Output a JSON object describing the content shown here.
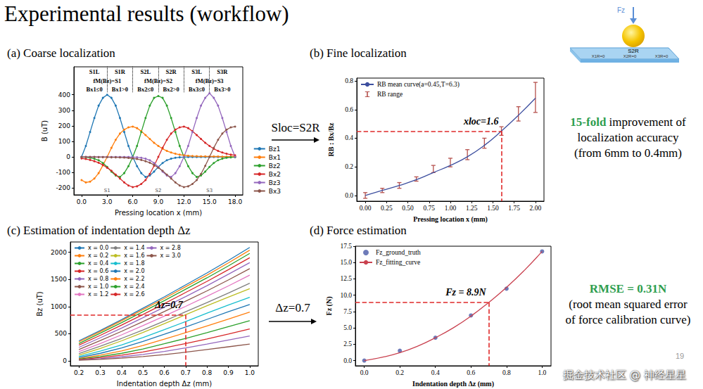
{
  "slide": {
    "title": "Experimental results (workflow)",
    "page": "19",
    "watermark": "掘金技术社区 @ 神经星星",
    "arrows": [
      {
        "label": "Sloc=S2R"
      },
      {
        "label": "Δz=0.7"
      }
    ],
    "notes": [
      {
        "highlight": "15-fold",
        "color": "#2e9e4f",
        "lines": [
          "improvement of",
          "localization accuracy",
          "(from 6mm to 0.4mm)"
        ]
      },
      {
        "highlight": "RMSE = 0.31N",
        "color": "#2e9e4f",
        "lines": [
          "(root mean squared error",
          "of force calibration curve)"
        ]
      }
    ],
    "diagram": {
      "force": "Fz",
      "region": "S2R",
      "labels": [
        "X1R=0",
        "X2R=0",
        "X3R=0"
      ]
    }
  },
  "chart_data": [
    {
      "type": "line",
      "title": "(a) Coarse localization",
      "x_label": "Pressing location x (mm)",
      "y_label": "B (uT)",
      "x": [
        0,
        0.5,
        1,
        1.5,
        2,
        2.5,
        3,
        3.5,
        4,
        4.5,
        5,
        5.5,
        6,
        6.5,
        7,
        7.5,
        8,
        8.5,
        9,
        9.5,
        10,
        10.5,
        11,
        11.5,
        12,
        12.5,
        13,
        13.5,
        14,
        14.5,
        15,
        15.5,
        16,
        16.5,
        17,
        17.5,
        18
      ],
      "series": [
        {
          "name": "Bz1",
          "color": "#1f77b4",
          "values": [
            0,
            70,
            160,
            250,
            330,
            380,
            400,
            380,
            330,
            250,
            160,
            70,
            0,
            -60,
            -105,
            -130,
            -120,
            -95,
            -65,
            -40,
            -22,
            -12,
            -6,
            -3,
            -2,
            -1,
            -1,
            -1,
            -1,
            -1,
            -1,
            -1,
            -1,
            -1,
            -1,
            -1,
            -1
          ]
        },
        {
          "name": "Bx1",
          "color": "#ff7f0e",
          "values": [
            -150,
            -165,
            -160,
            -140,
            -105,
            -55,
            0,
            58,
            110,
            150,
            175,
            190,
            195,
            185,
            165,
            140,
            115,
            90,
            70,
            52,
            38,
            28,
            20,
            14,
            10,
            7,
            5,
            4,
            3,
            3,
            2,
            2,
            2,
            1,
            1,
            1,
            1
          ]
        },
        {
          "name": "Bz2",
          "color": "#2ca02c",
          "values": [
            -2,
            -3,
            -6,
            -12,
            -22,
            -40,
            -65,
            -95,
            -120,
            -130,
            -105,
            -60,
            0,
            70,
            160,
            250,
            330,
            380,
            392,
            380,
            330,
            250,
            160,
            70,
            0,
            -60,
            -105,
            -130,
            -120,
            -95,
            -65,
            -40,
            -22,
            -12,
            -6,
            -3,
            -2
          ]
        },
        {
          "name": "Bx2",
          "color": "#d62728",
          "values": [
            -10,
            -14,
            -20,
            -28,
            -38,
            -52,
            -70,
            -90,
            -115,
            -140,
            -165,
            -185,
            -195,
            -190,
            -175,
            -150,
            -110,
            -58,
            0,
            58,
            110,
            150,
            175,
            190,
            195,
            185,
            165,
            140,
            115,
            90,
            70,
            52,
            38,
            28,
            20,
            14,
            10
          ]
        },
        {
          "name": "Bz3",
          "color": "#9467bd",
          "values": [
            -1,
            -1,
            -1,
            -1,
            -1,
            -1,
            -1,
            -1,
            -1,
            -1,
            -1,
            -1,
            -2,
            -3,
            -6,
            -12,
            -22,
            -40,
            -65,
            -95,
            -120,
            -130,
            -105,
            -60,
            0,
            70,
            160,
            250,
            330,
            380,
            410,
            380,
            330,
            250,
            160,
            70,
            0
          ]
        },
        {
          "name": "Bx3",
          "color": "#8c564b",
          "values": [
            -1,
            -1,
            -1,
            -1,
            -2,
            -2,
            -2,
            -3,
            -3,
            -4,
            -5,
            -7,
            -10,
            -14,
            -20,
            -28,
            -38,
            -52,
            -70,
            -90,
            -115,
            -140,
            -165,
            -185,
            -195,
            -190,
            -175,
            -150,
            -110,
            -58,
            0,
            58,
            110,
            150,
            175,
            190,
            195
          ]
        }
      ],
      "xlim": [
        -0.9,
        18.9
      ],
      "xticks": [
        {
          "value": 0,
          "label": "0.0"
        },
        {
          "value": 3,
          "label": "3.0"
        },
        {
          "value": 6,
          "label": "6.0"
        },
        {
          "value": 9,
          "label": "9.0"
        },
        {
          "value": 12,
          "label": "12.0"
        },
        {
          "value": 15,
          "label": "15.0"
        },
        {
          "value": 18,
          "label": "18.0"
        }
      ],
      "ylim": [
        -245,
        580
      ],
      "yticks": [
        -200,
        -100,
        0,
        100,
        200,
        300,
        400
      ],
      "marker": "circle",
      "legend": "lower right",
      "grid": false,
      "regions": [
        {
          "label": "S1L",
          "from": 0,
          "to": 3
        },
        {
          "label": "S1R",
          "from": 3,
          "to": 6
        },
        {
          "label": "S2L",
          "from": 6,
          "to": 9
        },
        {
          "label": "S2R",
          "from": 9,
          "to": 12
        },
        {
          "label": "S3L",
          "from": 12,
          "to": 15
        },
        {
          "label": "S3R",
          "from": 15,
          "to": 18
        }
      ],
      "groups": [
        {
          "label": "fM(Bz)=S1",
          "from": 0,
          "to": 6,
          "conditions": [
            "Bx1≤0",
            "Bx1>0"
          ]
        },
        {
          "label": "fM(Bz)=S2",
          "from": 6,
          "to": 12,
          "conditions": [
            "Bx2≤0",
            "Bx2>0"
          ]
        },
        {
          "label": "fM(Bz)=S3",
          "from": 12,
          "to": 18,
          "conditions": [
            "Bx3≤0",
            "Bx3>0"
          ]
        }
      ],
      "bottom_labels": [
        {
          "label": "S1",
          "x": 3
        },
        {
          "label": "S2",
          "x": 9
        },
        {
          "label": "S3",
          "x": 15
        }
      ]
    },
    {
      "type": "line",
      "title": "(b) Fine localization",
      "x_label": "Pressing location x (mm)",
      "y_label": "RB : Bx/Bz",
      "x": [
        0,
        0.2,
        0.4,
        0.6,
        0.8,
        1.0,
        1.2,
        1.4,
        1.6,
        1.8,
        2.0
      ],
      "series": [
        {
          "name": "RB mean curve(a=0.45,T=6.3)",
          "type": "line",
          "color": "#3d4f9f",
          "marker": "none",
          "values": [
            0,
            0.035,
            0.07,
            0.11,
            0.16,
            0.21,
            0.27,
            0.35,
            0.45,
            0.56,
            0.68
          ]
        },
        {
          "name": "RB range",
          "type": "errorbar",
          "color": "#b5504c",
          "low": [
            -0.02,
            0.02,
            0.05,
            0.1,
            0.16,
            0.2,
            0.25,
            0.33,
            0.42,
            0.52,
            0.58
          ],
          "high": [
            0.02,
            0.05,
            0.09,
            0.13,
            0.21,
            0.26,
            0.32,
            0.4,
            0.48,
            0.62,
            0.79
          ]
        }
      ],
      "xlim": [
        -0.1,
        2.1
      ],
      "xticks": [
        {
          "value": 0,
          "label": "0.00"
        },
        0.25,
        {
          "value": 0.5,
          "label": "0.50"
        },
        0.75,
        {
          "value": 1,
          "label": "1.00"
        },
        1.25,
        {
          "value": 1.5,
          "label": "1.50"
        },
        1.75,
        {
          "value": 2,
          "label": "2.00"
        }
      ],
      "ylim": [
        -0.04,
        0.82
      ],
      "yticks": [
        {
          "value": 0,
          "label": "0.0"
        },
        0.2,
        0.4,
        0.6,
        0.8
      ],
      "legend": "upper left",
      "grid": false,
      "guide": {
        "x": 1.6,
        "y": 0.45,
        "label": "xloc=1.6",
        "color": "#e02a2a",
        "line_style": "dashed"
      }
    },
    {
      "type": "line",
      "title": "(c) Estimation of indentation depth Δz",
      "x_label": "Indentation depth Δz (mm)",
      "y_label": "Bz (uT)",
      "x": [
        0.2,
        0.3,
        0.4,
        0.5,
        0.6,
        0.7,
        0.8,
        0.9,
        1.0
      ],
      "series": [
        {
          "name": "x = 0.0",
          "color": "#1f77b4",
          "values": [
            370,
            560,
            760,
            970,
            1180,
            1400,
            1620,
            1850,
            2090
          ]
        },
        {
          "name": "x = 0.2",
          "color": "#ff7f0e",
          "values": [
            350,
            540,
            740,
            945,
            1150,
            1365,
            1580,
            1805,
            2040
          ]
        },
        {
          "name": "x = 0.4",
          "color": "#2ca02c",
          "values": [
            320,
            510,
            705,
            905,
            1110,
            1320,
            1530,
            1750,
            1980
          ]
        },
        {
          "name": "x = 0.6",
          "color": "#d62728",
          "values": [
            290,
            470,
            660,
            855,
            1055,
            1260,
            1465,
            1680,
            1900
          ]
        },
        {
          "name": "x = 0.8",
          "color": "#9467bd",
          "values": [
            250,
            425,
            605,
            795,
            990,
            1185,
            1385,
            1595,
            1810
          ]
        },
        {
          "name": "x = 1.0",
          "color": "#8c564b",
          "values": [
            210,
            375,
            545,
            725,
            910,
            1100,
            1290,
            1490,
            1700
          ]
        },
        {
          "name": "x = 1.2",
          "color": "#e377c2",
          "values": [
            170,
            320,
            480,
            650,
            825,
            1005,
            1190,
            1380,
            1580
          ]
        },
        {
          "name": "x = 1.4",
          "color": "#7f7f7f",
          "values": [
            135,
            270,
            415,
            570,
            735,
            905,
            1075,
            1250,
            1430
          ]
        },
        {
          "name": "x = 1.6",
          "color": "#bcbd22",
          "values": [
            105,
            230,
            370,
            525,
            685,
            850,
            1015,
            1175,
            1330
          ]
        },
        {
          "name": "x = 1.8",
          "color": "#17becf",
          "values": [
            80,
            180,
            295,
            430,
            575,
            725,
            880,
            1030,
            1170
          ]
        },
        {
          "name": "x = 2.0",
          "color": "#1f77b4",
          "values": [
            60,
            140,
            240,
            360,
            490,
            625,
            765,
            905,
            1040
          ]
        },
        {
          "name": "x = 2.2",
          "color": "#ff7f0e",
          "values": [
            45,
            105,
            185,
            285,
            400,
            520,
            645,
            770,
            900
          ]
        },
        {
          "name": "x = 2.4",
          "color": "#2ca02c",
          "values": [
            35,
            80,
            140,
            220,
            315,
            415,
            520,
            630,
            740
          ]
        },
        {
          "name": "x = 2.6",
          "color": "#d62728",
          "values": [
            25,
            60,
            105,
            165,
            240,
            320,
            405,
            495,
            590
          ]
        },
        {
          "name": "x = 2.8",
          "color": "#9467bd",
          "values": [
            18,
            42,
            75,
            120,
            175,
            240,
            310,
            385,
            460
          ]
        },
        {
          "name": "x = 3.0",
          "color": "#8c564b",
          "values": [
            12,
            28,
            50,
            80,
            115,
            160,
            210,
            260,
            310
          ]
        }
      ],
      "xlim": [
        0.16,
        1.04
      ],
      "xticks": [
        0.2,
        0.3,
        0.4,
        0.5,
        0.6,
        0.7,
        0.8,
        0.9,
        {
          "value": 1,
          "label": "1.0"
        }
      ],
      "ylim": [
        -90,
        2190
      ],
      "yticks": [
        0,
        500,
        1000,
        1500,
        2000
      ],
      "marker": "none",
      "legend": "upper left",
      "grid": false,
      "guide": {
        "x": 0.7,
        "y": 850,
        "label": "Δz=0.7",
        "color": "#e02a2a",
        "line_style": "dashed"
      }
    },
    {
      "type": "line",
      "title": "(d) Force estimation",
      "x_label": "Indentation depth Δz (mm)",
      "y_label": "Fz (N)",
      "series": [
        {
          "name": "Fz_ground_truth",
          "type": "scatter",
          "marker": "circle",
          "color": "#4a5aa8",
          "x": [
            0,
            0.2,
            0.4,
            0.6,
            0.8,
            1.0
          ],
          "values": [
            0,
            1.5,
            3.5,
            6.9,
            11.0,
            16.7
          ]
        },
        {
          "name": "Fz_fitting_curve",
          "type": "line",
          "marker": "none",
          "color": "#c9414f",
          "x": [
            0,
            0.1,
            0.2,
            0.3,
            0.4,
            0.5,
            0.6,
            0.7,
            0.8,
            0.9,
            1.0
          ],
          "values": [
            0,
            0.5,
            1.2,
            2.2,
            3.5,
            5.0,
            6.8,
            8.9,
            11.2,
            13.8,
            16.7
          ]
        }
      ],
      "xlim": [
        -0.05,
        1.05
      ],
      "xticks": [
        {
          "value": 0,
          "label": "0.0"
        },
        0.2,
        0.4,
        0.6,
        0.8,
        {
          "value": 1,
          "label": "1.0"
        }
      ],
      "ylim": [
        -0.8,
        17.5
      ],
      "yticks": [
        {
          "value": 0,
          "label": "0.0"
        },
        2.5,
        {
          "value": 5,
          "label": "5.0"
        },
        7.5,
        {
          "value": 10,
          "label": "10.0"
        },
        12.5,
        {
          "value": 15,
          "label": "15.0"
        },
        17.5
      ],
      "legend": "upper left",
      "grid": false,
      "guide": {
        "x": 0.7,
        "y": 8.9,
        "label": "Fz = 8.9N",
        "color": "#e02a2a",
        "line_style": "dashed"
      }
    }
  ]
}
